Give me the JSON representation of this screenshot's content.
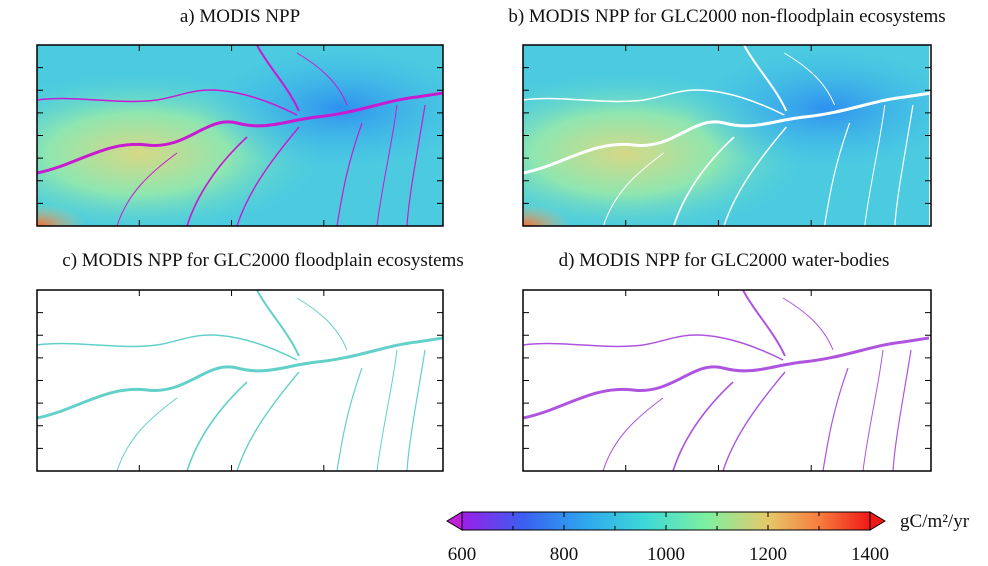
{
  "panels": [
    {
      "title": "a) MODIS NPP"
    },
    {
      "title": "b) MODIS NPP for GLC2000 non-floodplain ecosystems"
    },
    {
      "title": "c) MODIS NPP for GLC2000 floodplain ecosystems"
    },
    {
      "title": "d) MODIS NPP for GLC2000 water-bodies"
    }
  ],
  "colorbar": {
    "type": "colorbar",
    "lim": [
      600,
      1400
    ],
    "ticks": [
      600,
      800,
      1000,
      1200,
      1400
    ],
    "minor_ticks": [
      700,
      900,
      1100,
      1300
    ],
    "label": "gC/m²/yr",
    "extend": "both"
  }
}
